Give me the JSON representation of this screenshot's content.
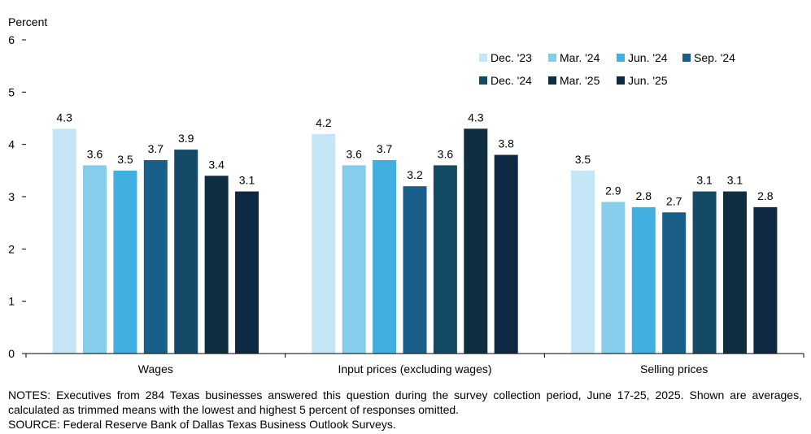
{
  "chart_data": {
    "type": "bar",
    "ylabel": "Percent",
    "ylim": [
      0,
      6
    ],
    "yticks": [
      0,
      1,
      2,
      3,
      4,
      5,
      6
    ],
    "categories": [
      "Wages",
      "Input prices (excluding wages)",
      "Selling prices"
    ],
    "series": [
      {
        "name": "Dec. '23",
        "color": "#c5e6f6",
        "values": [
          4.3,
          4.2,
          3.5
        ]
      },
      {
        "name": "Mar. '24",
        "color": "#86cdec",
        "values": [
          3.6,
          3.6,
          2.9
        ]
      },
      {
        "name": "Jun. '24",
        "color": "#42afe1",
        "values": [
          3.5,
          3.7,
          2.8
        ]
      },
      {
        "name": "Sep. '24",
        "color": "#1a5f8a",
        "values": [
          3.7,
          3.2,
          2.7
        ]
      },
      {
        "name": "Dec. '24",
        "color": "#144a66",
        "values": [
          3.9,
          3.6,
          3.1
        ]
      },
      {
        "name": "Mar. '25",
        "color": "#0d2f40",
        "values": [
          3.4,
          4.3,
          3.1
        ]
      },
      {
        "name": "Jun. '25",
        "color": "#0f2844",
        "values": [
          3.1,
          3.8,
          2.8
        ]
      }
    ],
    "data_labels": [
      [
        "4.3",
        "3.6",
        "3.5",
        "3.7",
        "3.9",
        "3.4",
        "3.1"
      ],
      [
        "4.2",
        "3.6",
        "3.7",
        "3.2",
        "3.6",
        "4.3",
        "3.8"
      ],
      [
        "3.5",
        "2.9",
        "2.8",
        "2.7",
        "3.1",
        "3.1",
        "2.8"
      ]
    ],
    "legend_position": "top-right",
    "grid": false
  },
  "notes": {
    "notes_text": "NOTES: Executives from 284 Texas businesses answered this question during the survey collection period, June 17-25, 2025. Shown are averages, calculated as trimmed means with the lowest and highest 5 percent of responses omitted.",
    "source_text": "SOURCE: Federal Reserve Bank of Dallas Texas Business Outlook Surveys."
  }
}
